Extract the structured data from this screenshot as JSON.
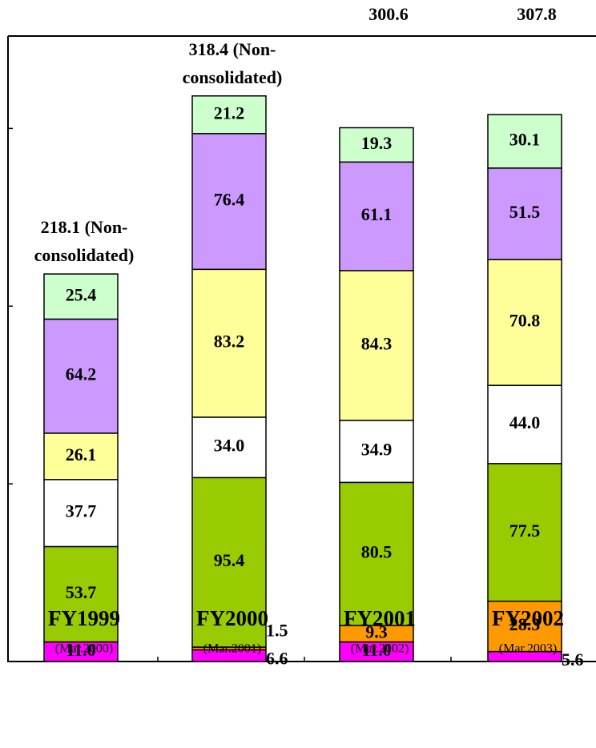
{
  "chart_data": {
    "type": "stacked-bar",
    "categories": [
      "FY1999",
      "FY2000",
      "FY2001",
      "FY2002"
    ],
    "subcategories": [
      "(Mar.2000)",
      "(Mar.2001)",
      "(Mar.2002)",
      "(Mar.2003)"
    ],
    "total_labels": [
      [
        "218.1  (Non-",
        "consolidated)"
      ],
      [
        "318.4  (Non-",
        "consolidated)"
      ],
      [
        "300.6"
      ],
      [
        "307.8"
      ]
    ],
    "ylim": [
      0,
      352
    ],
    "yticks": [
      0,
      100,
      200,
      300
    ],
    "series": [
      {
        "color": "#ff00ff",
        "values": [
          11.0,
          6.6,
          11.0,
          5.6
        ],
        "value_labels": [
          "11.0",
          "6.6",
          "11.0",
          "5.6"
        ]
      },
      {
        "color": "#ff9900",
        "values": [
          null,
          1.5,
          9.3,
          28.3
        ],
        "value_labels": [
          null,
          "1.5",
          "9.3",
          "28.3"
        ]
      },
      {
        "color": "#99cc00",
        "values": [
          53.7,
          95.4,
          80.5,
          77.5
        ],
        "value_labels": [
          "53.7",
          "95.4",
          "80.5",
          "77.5"
        ]
      },
      {
        "color": "#ffffff",
        "values": [
          37.7,
          34.0,
          34.9,
          44.0
        ],
        "value_labels": [
          "37.7",
          "34.0",
          "34.9",
          "44.0"
        ]
      },
      {
        "color": "#ffff99",
        "values": [
          26.1,
          83.2,
          84.3,
          70.8
        ],
        "value_labels": [
          "26.1",
          "83.2",
          "84.3",
          "70.8"
        ]
      },
      {
        "color": "#cc99ff",
        "values": [
          64.2,
          76.4,
          61.1,
          51.5
        ],
        "value_labels": [
          "64.2",
          "76.4",
          "61.1",
          "51.5"
        ]
      },
      {
        "color": "#ccffcc",
        "values": [
          25.4,
          21.2,
          19.3,
          30.1
        ],
        "value_labels": [
          "25.4",
          "21.2",
          "19.3",
          "30.1"
        ]
      }
    ]
  }
}
